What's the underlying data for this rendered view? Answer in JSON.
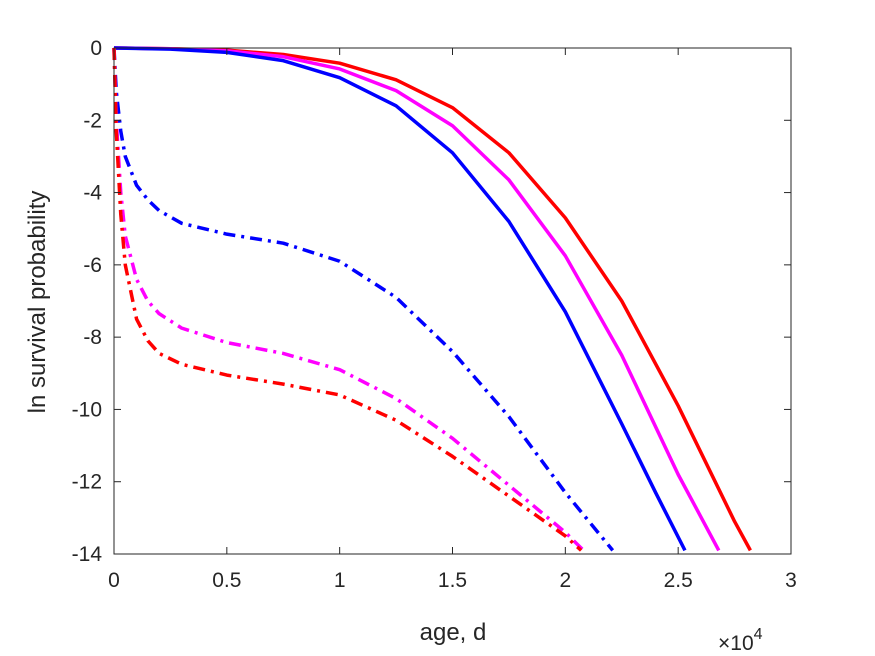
{
  "chart_data": {
    "type": "line",
    "title": "",
    "xlabel": "age, d",
    "ylabel": "ln survival probability",
    "x_exponent_label": "×10",
    "x_exponent_power": "4",
    "xlim": [
      0,
      3
    ],
    "ylim": [
      -14,
      0
    ],
    "xticks": [
      "0",
      "0.5",
      "1",
      "1.5",
      "2",
      "2.5",
      "3"
    ],
    "yticks": [
      "0",
      "-2",
      "-4",
      "-6",
      "-8",
      "-10",
      "-12",
      "-14"
    ],
    "grid": false,
    "legend": "none",
    "series": [
      {
        "color": "#ff0000",
        "style": "solid",
        "x": [
          0,
          0.25,
          0.5,
          0.75,
          1.0,
          1.25,
          1.5,
          1.75,
          2.0,
          2.25,
          2.5,
          2.75,
          2.82
        ],
        "y": [
          0,
          -0.02,
          -0.06,
          -0.18,
          -0.42,
          -0.88,
          -1.65,
          -2.9,
          -4.7,
          -7.0,
          -9.9,
          -13.1,
          -13.9
        ]
      },
      {
        "color": "#ff00ff",
        "style": "solid",
        "x": [
          0,
          0.25,
          0.5,
          0.75,
          1.0,
          1.25,
          1.5,
          1.75,
          2.0,
          2.25,
          2.5,
          2.68
        ],
        "y": [
          0,
          -0.02,
          -0.08,
          -0.24,
          -0.58,
          -1.18,
          -2.15,
          -3.65,
          -5.75,
          -8.5,
          -11.8,
          -13.9
        ]
      },
      {
        "color": "#0000ff",
        "style": "solid",
        "x": [
          0,
          0.25,
          0.5,
          0.75,
          1.0,
          1.25,
          1.5,
          1.75,
          2.0,
          2.25,
          2.4,
          2.53
        ],
        "y": [
          0,
          -0.03,
          -0.12,
          -0.35,
          -0.82,
          -1.6,
          -2.9,
          -4.8,
          -7.3,
          -10.4,
          -12.3,
          -13.9
        ]
      },
      {
        "color": "#0000ff",
        "style": "dashdot",
        "x": [
          0,
          0.01,
          0.03,
          0.05,
          0.1,
          0.15,
          0.2,
          0.3,
          0.5,
          0.75,
          1.0,
          1.25,
          1.5,
          1.75,
          2.0,
          2.21
        ],
        "y": [
          0,
          -1.2,
          -2.3,
          -3.0,
          -3.8,
          -4.2,
          -4.5,
          -4.85,
          -5.15,
          -5.4,
          -5.9,
          -6.9,
          -8.4,
          -10.2,
          -12.3,
          -13.9
        ]
      },
      {
        "color": "#ff00ff",
        "style": "dashdot",
        "x": [
          0,
          0.01,
          0.03,
          0.05,
          0.1,
          0.15,
          0.2,
          0.3,
          0.5,
          0.75,
          1.0,
          1.25,
          1.5,
          1.75,
          2.0,
          2.08
        ],
        "y": [
          0,
          -2.0,
          -4.0,
          -5.2,
          -6.4,
          -7.0,
          -7.35,
          -7.75,
          -8.15,
          -8.45,
          -8.9,
          -9.7,
          -10.8,
          -12.1,
          -13.4,
          -13.9
        ]
      },
      {
        "color": "#ff0000",
        "style": "dashdot",
        "x": [
          0,
          0.01,
          0.03,
          0.05,
          0.1,
          0.15,
          0.2,
          0.3,
          0.5,
          0.75,
          1.0,
          1.25,
          1.5,
          1.75,
          2.0,
          2.07
        ],
        "y": [
          0,
          -2.3,
          -4.6,
          -6.0,
          -7.5,
          -8.1,
          -8.45,
          -8.75,
          -9.05,
          -9.3,
          -9.6,
          -10.3,
          -11.3,
          -12.4,
          -13.5,
          -13.9
        ]
      }
    ]
  }
}
